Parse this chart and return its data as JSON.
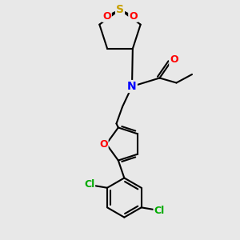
{
  "bg_color": "#e8e8e8",
  "bond_color": "#000000",
  "bond_width": 1.5,
  "atom_colors": {
    "S": "#c8a000",
    "O": "#ff0000",
    "N": "#0000ff",
    "Cl": "#00aa00",
    "C": "#000000"
  },
  "font_size": 9,
  "fig_size": [
    3.0,
    3.0
  ],
  "dpi": 100,
  "xlim": [
    0,
    10
  ],
  "ylim": [
    0,
    10
  ]
}
